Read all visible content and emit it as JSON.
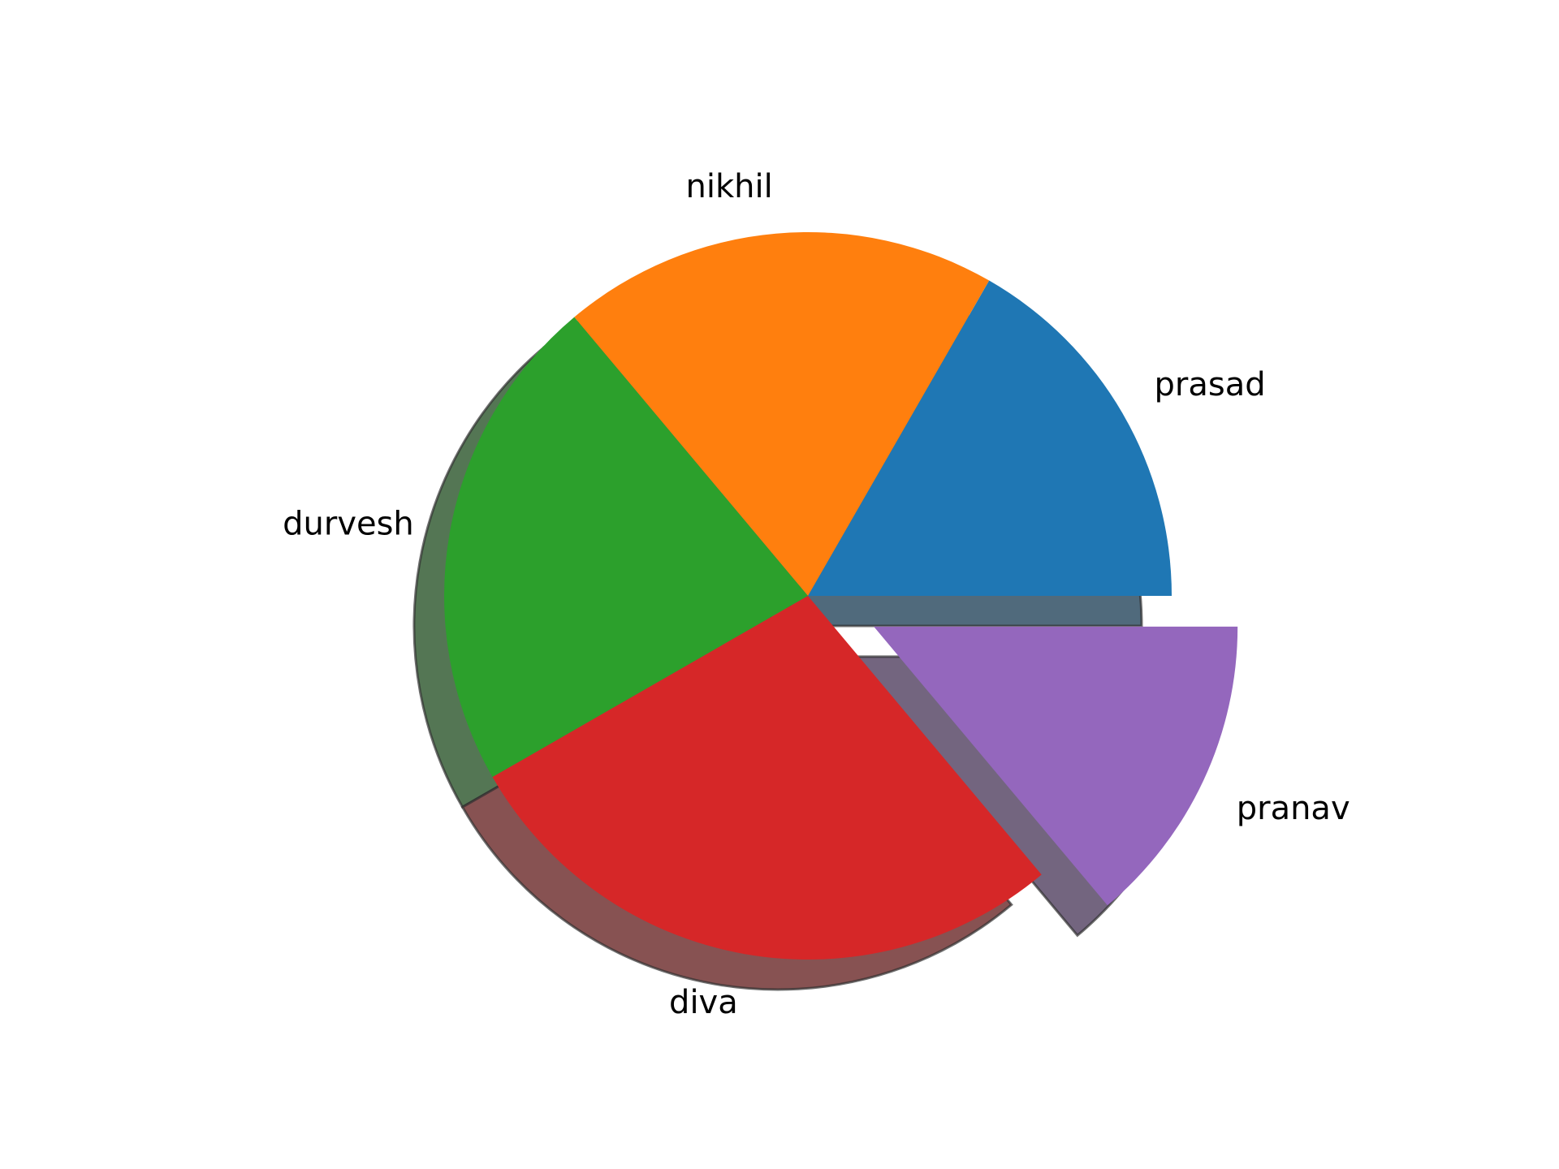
{
  "chart_data": {
    "type": "pie",
    "title": "",
    "start_angle": 0,
    "direction": "counterclockwise",
    "shadow": true,
    "slices": [
      {
        "label": "prasad",
        "value": 16.7,
        "color": "#1f77b4",
        "explode": 0
      },
      {
        "label": "nikhil",
        "value": 19.4,
        "color": "#ff7f0e",
        "explode": 0
      },
      {
        "label": "durvesh",
        "value": 22.2,
        "color": "#2ca02c",
        "explode": 0
      },
      {
        "label": "diva",
        "value": 27.8,
        "color": "#d62728",
        "explode": 0
      },
      {
        "label": "pranav",
        "value": 13.9,
        "color": "#9467bd",
        "explode": 0.2
      }
    ]
  }
}
